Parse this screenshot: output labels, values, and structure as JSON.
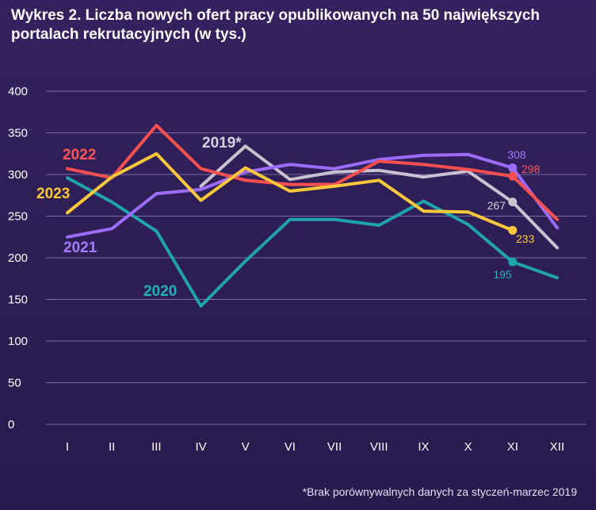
{
  "chart_data": {
    "type": "line",
    "title": "Wykres 2. Liczba nowych ofert pracy opublikowanych na 50 największych portalach rekrutacyjnych (w tys.)",
    "xlabel": "",
    "ylabel": "",
    "ylim": [
      0,
      400
    ],
    "yticks": [
      "0",
      "50",
      "100",
      "150",
      "200",
      "250",
      "300",
      "350",
      "400"
    ],
    "categories": [
      "I",
      "II",
      "III",
      "IV",
      "V",
      "VI",
      "VII",
      "VIII",
      "IX",
      "X",
      "XI",
      "XII"
    ],
    "grid": true,
    "series": [
      {
        "name": "2019*",
        "color": "#c9c3cf",
        "label_color": "#d6d1dc",
        "values": [
          null,
          null,
          null,
          286,
          334,
          294,
          303,
          305,
          297,
          304,
          267,
          212
        ],
        "end_value": "267",
        "end_index": 10
      },
      {
        "name": "2020",
        "color": "#1fa3ad",
        "label_color": "#1fb2bc",
        "values": [
          296,
          267,
          232,
          142,
          196,
          246,
          246,
          239,
          268,
          240,
          195,
          176
        ],
        "end_value": "195",
        "end_index": 10
      },
      {
        "name": "2021",
        "color": "#9d6bff",
        "label_color": "#a77bff",
        "values": [
          225,
          235,
          277,
          282,
          303,
          312,
          307,
          318,
          323,
          324,
          308,
          236
        ],
        "end_value": "308",
        "end_index": 10
      },
      {
        "name": "2022",
        "color": "#ff4f4f",
        "label_color": "#ff5757",
        "values": [
          307,
          296,
          359,
          307,
          293,
          288,
          288,
          316,
          312,
          306,
          298,
          246
        ],
        "end_value": "298",
        "end_index": 10
      },
      {
        "name": "2023",
        "color": "#ffc83a",
        "label_color": "#ffc83a",
        "values": [
          254,
          297,
          325,
          269,
          308,
          280,
          286,
          293,
          256,
          255,
          233,
          null
        ],
        "end_value": "233",
        "end_index": 10
      }
    ]
  },
  "footnote": "*Brak porównywalnych danych za styczeń-marzec 2019"
}
